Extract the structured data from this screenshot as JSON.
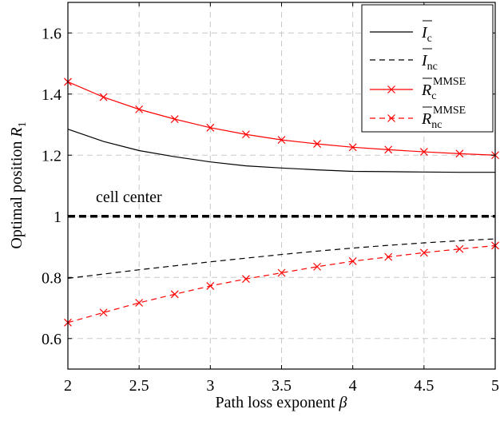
{
  "chart_data": {
    "type": "line",
    "xlabel": "Path loss exponent",
    "xlabel_symbol": "β",
    "ylabel": "Optimal position",
    "ylabel_symbol": "R",
    "ylabel_subscript": "1",
    "xlim": [
      2,
      5
    ],
    "ylim": [
      0.5,
      1.7
    ],
    "xticks": [
      2,
      2.5,
      3,
      3.5,
      4,
      4.5,
      5
    ],
    "xtick_labels": [
      "2",
      "2.5",
      "3",
      "3.5",
      "4",
      "4.5",
      "5"
    ],
    "yticks": [
      0.6,
      0.8,
      1.0,
      1.2,
      1.4,
      1.6
    ],
    "ytick_labels": [
      "0.6",
      "0.8",
      "1",
      "1.2",
      "1.4",
      "1.6"
    ],
    "grid": true,
    "legend_position": "top-right",
    "annotation": "cell center",
    "reference_line": {
      "y": 1.0
    },
    "series": [
      {
        "name": "I_c",
        "symbol": "I",
        "sub": "c",
        "sup": "",
        "color": "#000000",
        "dashed": false,
        "marker": "none",
        "x": [
          2,
          2.25,
          2.5,
          2.75,
          3,
          3.25,
          3.5,
          3.75,
          4,
          4.25,
          4.5,
          4.75,
          5
        ],
        "values": [
          1.285,
          1.245,
          1.215,
          1.195,
          1.178,
          1.165,
          1.158,
          1.152,
          1.147,
          1.146,
          1.145,
          1.144,
          1.144
        ]
      },
      {
        "name": "I_nc",
        "symbol": "I",
        "sub": "nc",
        "sup": "",
        "color": "#000000",
        "dashed": true,
        "marker": "none",
        "x": [
          2,
          2.25,
          2.5,
          2.75,
          3,
          3.25,
          3.5,
          3.75,
          4,
          4.25,
          4.5,
          4.75,
          5
        ],
        "values": [
          0.797,
          0.811,
          0.825,
          0.838,
          0.851,
          0.863,
          0.875,
          0.886,
          0.896,
          0.905,
          0.913,
          0.92,
          0.926
        ]
      },
      {
        "name": "R_c^MMSE",
        "symbol": "R",
        "sub": "c",
        "sup": "MMSE",
        "color": "#ff0000",
        "dashed": false,
        "marker": "x",
        "x": [
          2,
          2.25,
          2.5,
          2.75,
          3,
          3.25,
          3.5,
          3.75,
          4,
          4.25,
          4.5,
          4.75,
          5
        ],
        "values": [
          1.44,
          1.39,
          1.35,
          1.318,
          1.29,
          1.268,
          1.25,
          1.237,
          1.226,
          1.218,
          1.211,
          1.205,
          1.2
        ]
      },
      {
        "name": "R_nc^MMSE",
        "symbol": "R",
        "sub": "nc",
        "sup": "MMSE",
        "color": "#ff0000",
        "dashed": true,
        "marker": "x",
        "x": [
          2,
          2.25,
          2.5,
          2.75,
          3,
          3.25,
          3.5,
          3.75,
          4,
          4.25,
          4.5,
          4.75,
          5
        ],
        "values": [
          0.652,
          0.685,
          0.717,
          0.745,
          0.772,
          0.795,
          0.815,
          0.835,
          0.853,
          0.867,
          0.881,
          0.893,
          0.904
        ]
      }
    ]
  }
}
